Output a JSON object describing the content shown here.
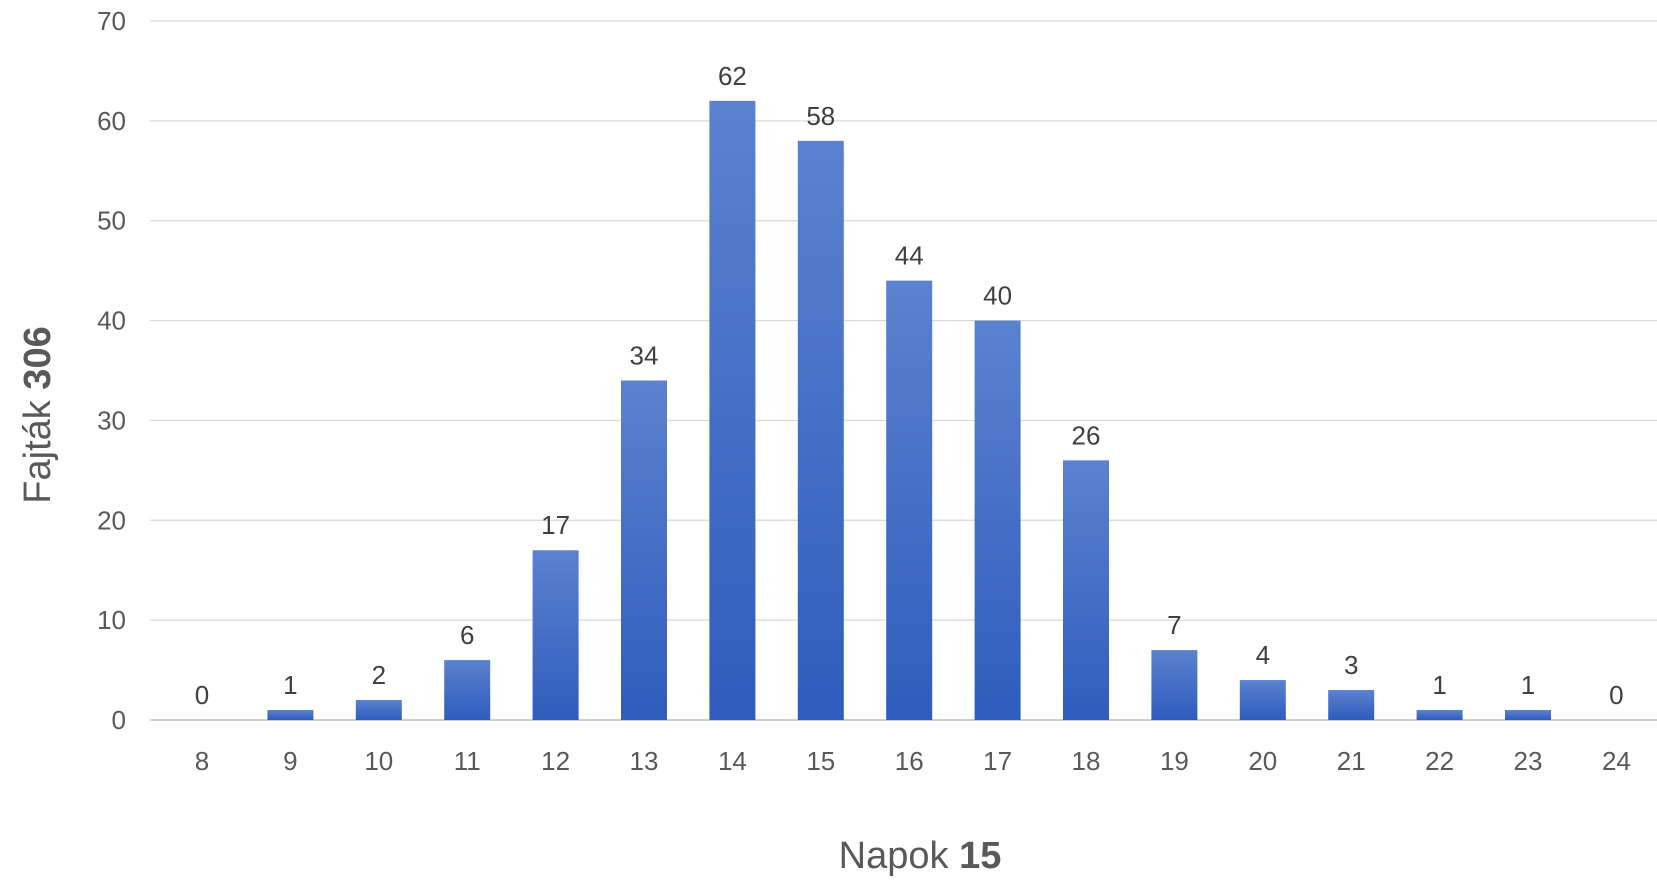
{
  "chart_data": {
    "type": "bar",
    "categories": [
      "8",
      "9",
      "10",
      "11",
      "12",
      "13",
      "14",
      "15",
      "16",
      "17",
      "18",
      "19",
      "20",
      "21",
      "22",
      "23",
      "24"
    ],
    "values": [
      0,
      1,
      2,
      6,
      17,
      34,
      62,
      58,
      44,
      40,
      26,
      7,
      4,
      3,
      1,
      1,
      0
    ],
    "ylim": [
      0,
      70
    ],
    "yticks": [
      0,
      10,
      20,
      30,
      40,
      50,
      60,
      70
    ],
    "xlabel": {
      "text": "Napok",
      "bold": "15"
    },
    "ylabel": {
      "text": "Fajták",
      "bold": "306"
    },
    "grid": true,
    "data_labels": true,
    "bar_color": "#4472c4"
  }
}
